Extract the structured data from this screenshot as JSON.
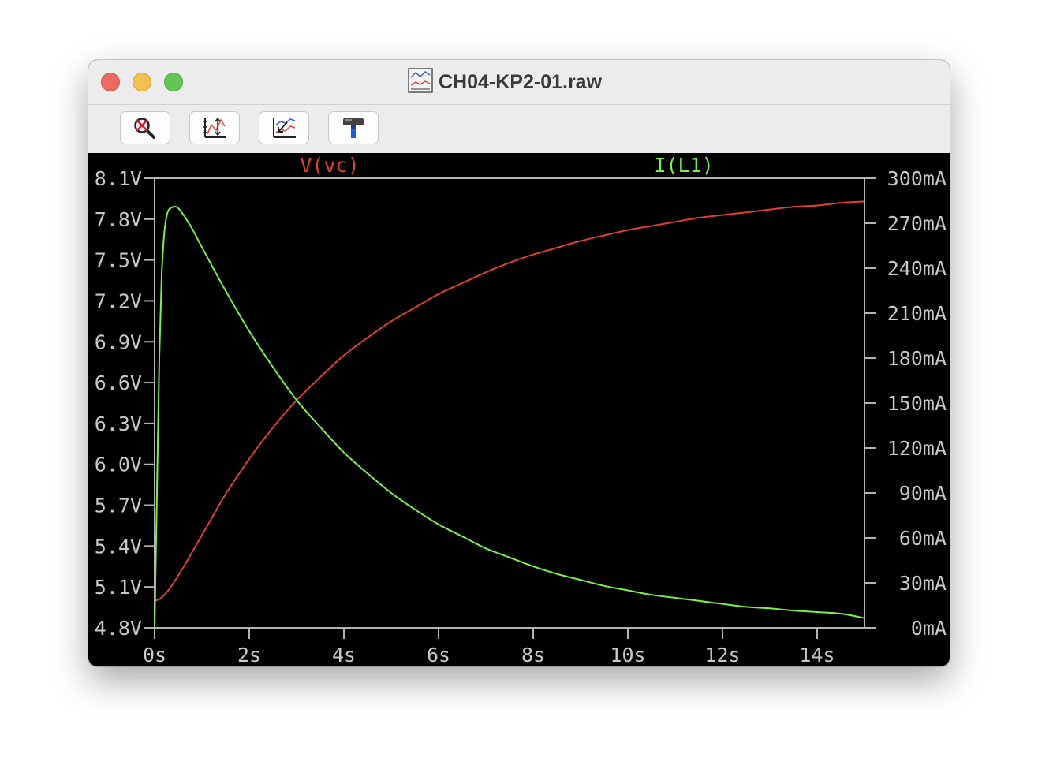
{
  "window": {
    "title": "CH04-KP2-01.raw"
  },
  "toolbar": {
    "buttons": [
      {
        "name": "zoom-cancel-button",
        "icon": "zoom-cancel-icon"
      },
      {
        "name": "autorange-button",
        "icon": "autorange-icon"
      },
      {
        "name": "pick-visible-traces-button",
        "icon": "traces-icon"
      },
      {
        "name": "settings-button",
        "icon": "hammer-icon"
      }
    ]
  },
  "colors": {
    "red_trace": "#e0402f",
    "green_trace": "#7cf04a",
    "axis": "#b4b4b4",
    "background": "#000000"
  },
  "chart_data": {
    "type": "line",
    "x": {
      "unit": "s",
      "range": [
        0,
        15
      ],
      "ticks": [
        0,
        2,
        4,
        6,
        8,
        10,
        12,
        14
      ],
      "tick_labels": [
        "0s",
        "2s",
        "4s",
        "6s",
        "8s",
        "10s",
        "12s",
        "14s"
      ]
    },
    "y_left": {
      "unit": "V",
      "range": [
        4.8,
        8.1
      ],
      "ticks": [
        4.8,
        5.1,
        5.4,
        5.7,
        6.0,
        6.3,
        6.6,
        6.9,
        7.2,
        7.5,
        7.8,
        8.1
      ],
      "tick_labels": [
        "4.8V",
        "5.1V",
        "5.4V",
        "5.7V",
        "6.0V",
        "6.3V",
        "6.6V",
        "6.9V",
        "7.2V",
        "7.5V",
        "7.8V",
        "8.1V"
      ]
    },
    "y_right": {
      "unit": "mA",
      "range": [
        0,
        300
      ],
      "ticks": [
        0,
        30,
        60,
        90,
        120,
        150,
        180,
        210,
        240,
        270,
        300
      ],
      "tick_labels": [
        "0mA",
        "30mA",
        "60mA",
        "90mA",
        "120mA",
        "150mA",
        "180mA",
        "210mA",
        "240mA",
        "270mA",
        "300mA"
      ]
    },
    "grid": false,
    "series": [
      {
        "name": "V(vc)",
        "axis": "left",
        "color": "#e0402f",
        "points": [
          [
            0,
            5.0
          ],
          [
            0.1,
            5.01
          ],
          [
            0.2,
            5.04
          ],
          [
            0.3,
            5.08
          ],
          [
            0.4,
            5.13
          ],
          [
            0.6,
            5.24
          ],
          [
            0.8,
            5.36
          ],
          [
            1.0,
            5.48
          ],
          [
            1.2,
            5.6
          ],
          [
            1.5,
            5.78
          ],
          [
            2.0,
            6.04
          ],
          [
            2.5,
            6.27
          ],
          [
            3.0,
            6.47
          ],
          [
            3.5,
            6.64
          ],
          [
            4.0,
            6.8
          ],
          [
            4.5,
            6.93
          ],
          [
            5.0,
            7.05
          ],
          [
            5.5,
            7.15
          ],
          [
            6.0,
            7.25
          ],
          [
            6.5,
            7.33
          ],
          [
            7.0,
            7.41
          ],
          [
            7.5,
            7.48
          ],
          [
            8.0,
            7.54
          ],
          [
            8.5,
            7.59
          ],
          [
            9.0,
            7.64
          ],
          [
            9.5,
            7.68
          ],
          [
            10.0,
            7.72
          ],
          [
            10.5,
            7.75
          ],
          [
            11.0,
            7.78
          ],
          [
            11.5,
            7.81
          ],
          [
            12.0,
            7.83
          ],
          [
            12.5,
            7.85
          ],
          [
            13.0,
            7.87
          ],
          [
            13.5,
            7.89
          ],
          [
            14.0,
            7.9
          ],
          [
            14.5,
            7.92
          ],
          [
            15.0,
            7.93
          ]
        ]
      },
      {
        "name": "I(L1)",
        "axis": "right",
        "color": "#7cf04a",
        "points": [
          [
            0,
            0
          ],
          [
            0.05,
            90
          ],
          [
            0.1,
            180
          ],
          [
            0.15,
            235
          ],
          [
            0.2,
            262
          ],
          [
            0.25,
            274
          ],
          [
            0.3,
            279
          ],
          [
            0.4,
            281
          ],
          [
            0.45,
            281
          ],
          [
            0.5,
            280
          ],
          [
            0.6,
            276
          ],
          [
            0.8,
            266
          ],
          [
            1.0,
            254
          ],
          [
            1.5,
            225
          ],
          [
            2.0,
            198
          ],
          [
            2.5,
            174
          ],
          [
            3.0,
            152
          ],
          [
            3.5,
            134
          ],
          [
            4.0,
            117
          ],
          [
            4.5,
            103
          ],
          [
            5.0,
            90
          ],
          [
            5.5,
            79
          ],
          [
            6.0,
            69
          ],
          [
            6.5,
            61
          ],
          [
            7.0,
            53
          ],
          [
            7.5,
            47
          ],
          [
            8.0,
            41
          ],
          [
            8.5,
            36
          ],
          [
            9.0,
            32
          ],
          [
            9.5,
            28
          ],
          [
            10.0,
            25
          ],
          [
            10.5,
            22
          ],
          [
            11.0,
            20
          ],
          [
            11.5,
            18
          ],
          [
            12.0,
            16
          ],
          [
            12.5,
            14
          ],
          [
            13.0,
            13
          ],
          [
            13.5,
            11.5
          ],
          [
            14.0,
            10.5
          ],
          [
            14.5,
            9.5
          ],
          [
            15.0,
            6.5
          ]
        ]
      }
    ]
  }
}
